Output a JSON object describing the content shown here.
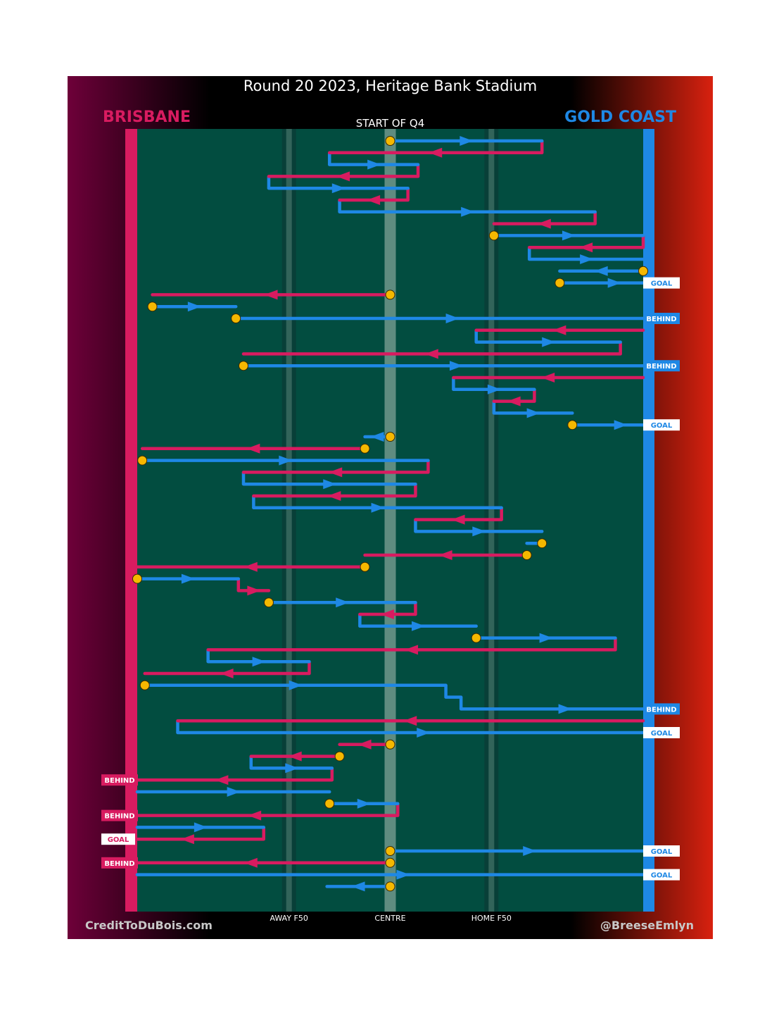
{
  "title": "Round 20 2023, Heritage Bank Stadium",
  "home_team": "BRISBANE",
  "away_team": "GOLD COAST",
  "subtitle": "START OF Q4",
  "credit": "CreditToDuBois.com",
  "handle": "@BreeseEmlyn",
  "colors": {
    "home": "#d81b60",
    "away": "#1e88e5",
    "ground": "#024d40",
    "stoppage": "#f5b800"
  },
  "chart_data": {
    "type": "line",
    "title": "Round 20 2023, Heritage Bank Stadium",
    "xlabel": "",
    "ylabel": "",
    "x_ticks": [
      {
        "label": "AWAY F50",
        "x": 0.3
      },
      {
        "label": "CENTRE",
        "x": 0.5
      },
      {
        "label": "HOME F50",
        "x": 0.7
      }
    ],
    "xlim": [
      0,
      1
    ],
    "segments": [
      {
        "team": "GOLD COAST",
        "y": 1,
        "x0": 0.5,
        "x1": 0.8,
        "stoppage": true
      },
      {
        "team": "BRISBANE",
        "y": 2,
        "x0": 0.8,
        "x1": 0.38
      },
      {
        "team": "GOLD COAST",
        "y": 3,
        "x0": 0.38,
        "x1": 0.555
      },
      {
        "team": "BRISBANE",
        "y": 4,
        "x0": 0.555,
        "x1": 0.26
      },
      {
        "team": "GOLD COAST",
        "y": 5,
        "x0": 0.26,
        "x1": 0.535
      },
      {
        "team": "BRISBANE",
        "y": 6,
        "x0": 0.535,
        "x1": 0.4
      },
      {
        "team": "GOLD COAST",
        "y": 7,
        "x0": 0.4,
        "x1": 0.905
      },
      {
        "team": "BRISBANE",
        "y": 8,
        "x0": 0.905,
        "x1": 0.705
      },
      {
        "team": "GOLD COAST",
        "y": 9,
        "x0": 0.705,
        "x1": 1.0,
        "stoppage": true
      },
      {
        "team": "BRISBANE",
        "y": 10,
        "x0": 1.0,
        "x1": 0.775
      },
      {
        "team": "GOLD COAST",
        "y": 11,
        "x0": 0.775,
        "x1": 1.0
      },
      {
        "team": "GOLD COAST",
        "y": 12,
        "x0": 1.0,
        "x1": 0.835,
        "stoppage": true
      },
      {
        "team": "GOLD COAST",
        "y": 13,
        "x0": 0.835,
        "x1": 1.05,
        "stoppage": true,
        "outcome": "GOAL"
      },
      {
        "team": "BRISBANE",
        "y": 14,
        "x0": 0.5,
        "x1": 0.03,
        "stoppage": true
      },
      {
        "team": "GOLD COAST",
        "y": 15,
        "x0": 0.03,
        "x1": 0.195,
        "stoppage": true
      },
      {
        "team": "GOLD COAST",
        "y": 16,
        "x0": 0.195,
        "x1": 1.05,
        "stoppage": true,
        "outcome": "BEHIND"
      },
      {
        "team": "BRISBANE",
        "y": 17,
        "x0": 1.0,
        "x1": 0.67
      },
      {
        "team": "GOLD COAST",
        "y": 18,
        "x0": 0.67,
        "x1": 0.955
      },
      {
        "team": "BRISBANE",
        "y": 19,
        "x0": 0.955,
        "x1": 0.21
      },
      {
        "team": "GOLD COAST",
        "y": 20,
        "x0": 0.21,
        "x1": 1.05,
        "stoppage": true,
        "outcome": "BEHIND"
      },
      {
        "team": "BRISBANE",
        "y": 21,
        "x0": 1.0,
        "x1": 0.625
      },
      {
        "team": "GOLD COAST",
        "y": 22,
        "x0": 0.625,
        "x1": 0.785
      },
      {
        "team": "BRISBANE",
        "y": 23,
        "x0": 0.785,
        "x1": 0.705
      },
      {
        "team": "GOLD COAST",
        "y": 24,
        "x0": 0.705,
        "x1": 0.86
      },
      {
        "team": "GOLD COAST",
        "y": 25,
        "x0": 0.86,
        "x1": 1.05,
        "stoppage": true,
        "outcome": "GOAL"
      },
      {
        "team": "GOLD COAST",
        "y": 26,
        "x0": 0.5,
        "x1": 0.45,
        "stoppage": true
      },
      {
        "team": "BRISBANE",
        "y": 27,
        "x0": 0.45,
        "x1": 0.01,
        "stoppage": true
      },
      {
        "team": "GOLD COAST",
        "y": 28,
        "x0": 0.01,
        "x1": 0.575,
        "stoppage": true
      },
      {
        "team": "BRISBANE",
        "y": 29,
        "x0": 0.575,
        "x1": 0.21
      },
      {
        "team": "GOLD COAST",
        "y": 30,
        "x0": 0.21,
        "x1": 0.55
      },
      {
        "team": "BRISBANE",
        "y": 31,
        "x0": 0.55,
        "x1": 0.23
      },
      {
        "team": "GOLD COAST",
        "y": 32,
        "x0": 0.23,
        "x1": 0.72
      },
      {
        "team": "BRISBANE",
        "y": 33,
        "x0": 0.72,
        "x1": 0.55
      },
      {
        "team": "GOLD COAST",
        "y": 34,
        "x0": 0.55,
        "x1": 0.8
      },
      {
        "team": "GOLD COAST",
        "y": 35,
        "x0": 0.8,
        "x1": 0.77,
        "stoppage": true
      },
      {
        "team": "BRISBANE",
        "y": 36,
        "x0": 0.77,
        "x1": 0.45,
        "stoppage": true
      },
      {
        "team": "BRISBANE",
        "y": 37,
        "x0": 0.45,
        "x1": 0.0,
        "stoppage": true
      },
      {
        "team": "GOLD COAST",
        "y": 38,
        "x0": 0.0,
        "x1": 0.2,
        "stoppage": true
      },
      {
        "team": "BRISBANE",
        "y": 39,
        "x0": 0.2,
        "x1": 0.26
      },
      {
        "team": "GOLD COAST",
        "y": 40,
        "x0": 0.26,
        "x1": 0.55,
        "stoppage": true
      },
      {
        "team": "BRISBANE",
        "y": 41,
        "x0": 0.55,
        "x1": 0.44
      },
      {
        "team": "GOLD COAST",
        "y": 42,
        "x0": 0.44,
        "x1": 0.67
      },
      {
        "team": "GOLD COAST",
        "y": 43,
        "x0": 0.67,
        "x1": 0.945,
        "stoppage": true
      },
      {
        "team": "BRISBANE",
        "y": 44,
        "x0": 0.945,
        "x1": 0.14
      },
      {
        "team": "GOLD COAST",
        "y": 45,
        "x0": 0.14,
        "x1": 0.34
      },
      {
        "team": "BRISBANE",
        "y": 46,
        "x0": 0.34,
        "x1": 0.015
      },
      {
        "team": "GOLD COAST",
        "y": 47,
        "x0": 0.015,
        "x1": 0.61,
        "stoppage": true
      },
      {
        "team": "GOLD COAST",
        "y": 48,
        "x0": 0.61,
        "x1": 0.64
      },
      {
        "team": "GOLD COAST",
        "y": 49,
        "x0": 0.64,
        "x1": 1.05,
        "outcome": "BEHIND"
      },
      {
        "team": "BRISBANE",
        "y": 50,
        "x0": 1.0,
        "x1": 0.08
      },
      {
        "team": "GOLD COAST",
        "y": 51,
        "x0": 0.08,
        "x1": 1.05,
        "outcome": "GOAL"
      },
      {
        "team": "BRISBANE",
        "y": 52,
        "x0": 0.5,
        "x1": 0.4,
        "stoppage": true
      },
      {
        "team": "BRISBANE",
        "y": 53,
        "x0": 0.4,
        "x1": 0.225,
        "stoppage": true
      },
      {
        "team": "GOLD COAST",
        "y": 54,
        "x0": 0.225,
        "x1": 0.385
      },
      {
        "team": "BRISBANE",
        "y": 55,
        "x0": 0.385,
        "x1": -0.05,
        "outcome": "BEHIND"
      },
      {
        "team": "GOLD COAST",
        "y": 56,
        "x0": 0.0,
        "x1": 0.38
      },
      {
        "team": "GOLD COAST",
        "y": 57,
        "x0": 0.38,
        "x1": 0.515,
        "stoppage": true
      },
      {
        "team": "BRISBANE",
        "y": 58,
        "x0": 0.515,
        "x1": -0.05,
        "outcome": "BEHIND"
      },
      {
        "team": "GOLD COAST",
        "y": 59,
        "x0": 0.0,
        "x1": 0.25
      },
      {
        "team": "BRISBANE",
        "y": 60,
        "x0": 0.25,
        "x1": -0.05,
        "outcome": "GOAL"
      },
      {
        "team": "GOLD COAST",
        "y": 61,
        "x0": 0.5,
        "x1": 1.05,
        "stoppage": true,
        "outcome": "GOAL"
      },
      {
        "team": "BRISBANE",
        "y": 62,
        "x0": 0.5,
        "x1": -0.05,
        "stoppage": true,
        "outcome": "BEHIND"
      },
      {
        "team": "GOLD COAST",
        "y": 63,
        "x0": 0.0,
        "x1": 1.05,
        "outcome": "GOAL"
      },
      {
        "team": "GOLD COAST",
        "y": 64,
        "x0": 0.5,
        "x1": 0.375,
        "stoppage": true
      }
    ]
  }
}
